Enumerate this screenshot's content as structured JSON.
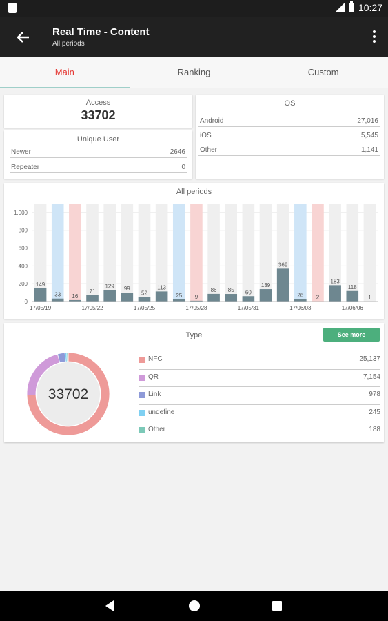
{
  "status": {
    "time": "10:27"
  },
  "appbar": {
    "title": "Real Time - Content",
    "subtitle": "All periods"
  },
  "tabs": [
    {
      "label": "Main",
      "active": true
    },
    {
      "label": "Ranking",
      "active": false
    },
    {
      "label": "Custom",
      "active": false
    }
  ],
  "access": {
    "label": "Access",
    "value": "33702"
  },
  "unique_user": {
    "label": "Unique User",
    "rows": [
      {
        "label": "Newer",
        "value": "2646"
      },
      {
        "label": "Repeater",
        "value": "0"
      }
    ]
  },
  "os": {
    "label": "OS",
    "rows": [
      {
        "label": "Android",
        "value": "27,016"
      },
      {
        "label": "iOS",
        "value": "5,545"
      },
      {
        "label": "Other",
        "value": "1,141"
      }
    ]
  },
  "chart_data": {
    "type": "bar",
    "title": "All periods",
    "ylim": [
      0,
      1100
    ],
    "yticks": [
      "1,000",
      "800",
      "600",
      "400",
      "200",
      "0"
    ],
    "ytick_values": [
      1000,
      800,
      600,
      400,
      200,
      0
    ],
    "values": [
      149,
      33,
      16,
      71,
      129,
      99,
      52,
      113,
      25,
      9,
      86,
      85,
      60,
      139,
      369,
      26,
      2,
      183,
      118,
      1
    ],
    "day_type": [
      "",
      "sat",
      "sun",
      "",
      "",
      "",
      "",
      "",
      "sat",
      "sun",
      "",
      "",
      "",
      "",
      "",
      "sat",
      "sun",
      "",
      "",
      ""
    ],
    "xtick_labels": [
      "17/05/19",
      "17/05/22",
      "17/05/25",
      "17/05/28",
      "17/05/31",
      "17/06/03",
      "17/06/06"
    ],
    "xtick_indices": [
      0,
      3,
      6,
      9,
      12,
      15,
      18
    ],
    "colors": {
      "bar": "#6e8790",
      "bg_weekday": "#efefef",
      "bg_sat": "#cfe5f7",
      "bg_sun": "#f8d4d3"
    }
  },
  "type_section": {
    "title": "Type",
    "see_more": "See more",
    "total": "33702",
    "items": [
      {
        "label": "NFC",
        "value": "25,137",
        "amount": 25137,
        "color": "#ee9a98"
      },
      {
        "label": "QR",
        "value": "7,154",
        "amount": 7154,
        "color": "#cf9ad9"
      },
      {
        "label": "Link",
        "value": "978",
        "amount": 978,
        "color": "#8e9ad8"
      },
      {
        "label": "undefine",
        "value": "245",
        "amount": 245,
        "color": "#7fd0f2"
      },
      {
        "label": "Other",
        "value": "188",
        "amount": 188,
        "color": "#7cc9b8"
      }
    ]
  }
}
